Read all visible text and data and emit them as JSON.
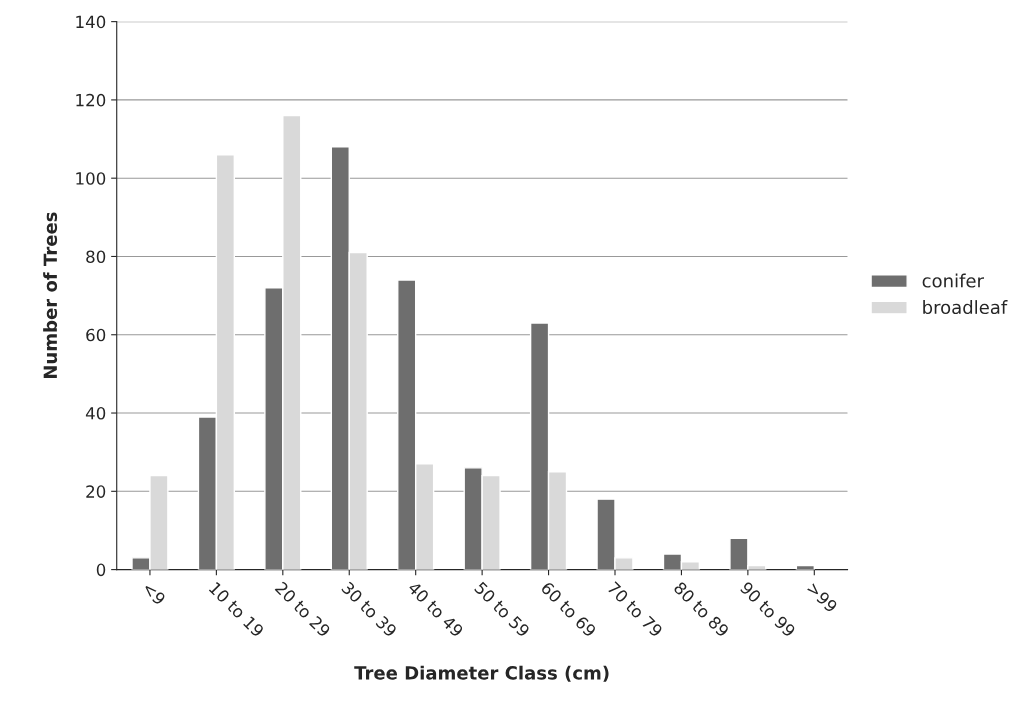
{
  "chart_data": {
    "type": "bar",
    "xlabel": "Tree Diameter Class (cm)",
    "ylabel": "Number of Trees",
    "categories": [
      "<9",
      "10 to 19",
      "20 to 29",
      "30 to 39",
      "40 to 49",
      "50 to 59",
      "60 to 69",
      "70 to 79",
      "80 to 89",
      "90 to 99",
      ">99"
    ],
    "series": [
      {
        "name": "conifer",
        "color": "#6e6e6e",
        "values": [
          3,
          39,
          72,
          108,
          74,
          26,
          63,
          18,
          4,
          8,
          1
        ]
      },
      {
        "name": "broadleaf",
        "color": "#d9d9d9",
        "values": [
          24,
          106,
          116,
          81,
          27,
          24,
          25,
          3,
          2,
          1,
          null
        ]
      }
    ],
    "ylim": [
      0,
      140
    ],
    "yticks": [
      0,
      20,
      40,
      60,
      80,
      100,
      120,
      140
    ],
    "grid": "y",
    "legend": "right"
  }
}
